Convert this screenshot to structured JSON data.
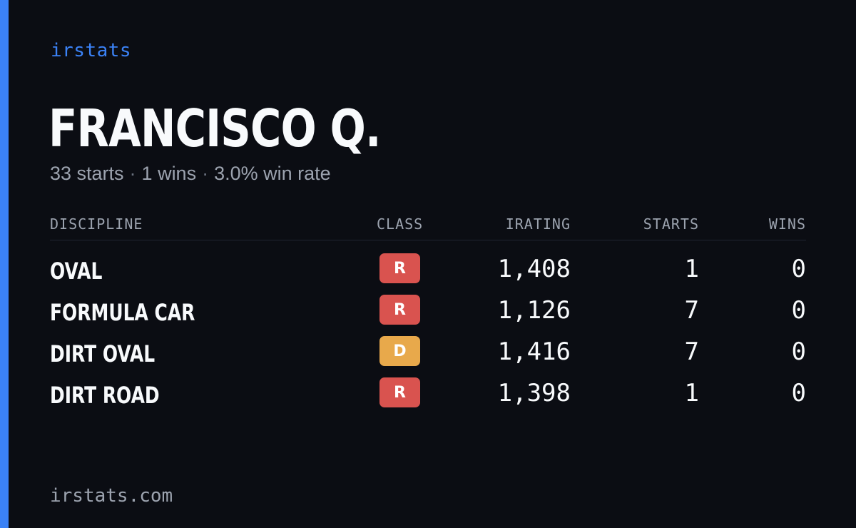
{
  "brand": "irstats",
  "driver": {
    "name": "FRANCISCO Q.",
    "starts_text": "33 starts",
    "wins_text": "1 wins",
    "win_rate_text": "3.0% win rate",
    "separator": "·"
  },
  "table": {
    "headers": {
      "discipline": "DISCIPLINE",
      "class": "CLASS",
      "irating": "IRATING",
      "starts": "STARTS",
      "wins": "WINS"
    },
    "rows": [
      {
        "discipline": "OVAL",
        "class": "R",
        "class_color": "#d9534f",
        "irating": "1,408",
        "starts": "1",
        "wins": "0"
      },
      {
        "discipline": "FORMULA CAR",
        "class": "R",
        "class_color": "#d9534f",
        "irating": "1,126",
        "starts": "7",
        "wins": "0"
      },
      {
        "discipline": "DIRT OVAL",
        "class": "D",
        "class_color": "#e8a94b",
        "irating": "1,416",
        "starts": "7",
        "wins": "0"
      },
      {
        "discipline": "DIRT ROAD",
        "class": "R",
        "class_color": "#d9534f",
        "irating": "1,398",
        "starts": "1",
        "wins": "0"
      }
    ]
  },
  "footer": {
    "url": "irstats.com"
  },
  "colors": {
    "accent": "#3b82f6",
    "background": "#0b0d13",
    "muted_text": "#9ca3af"
  }
}
